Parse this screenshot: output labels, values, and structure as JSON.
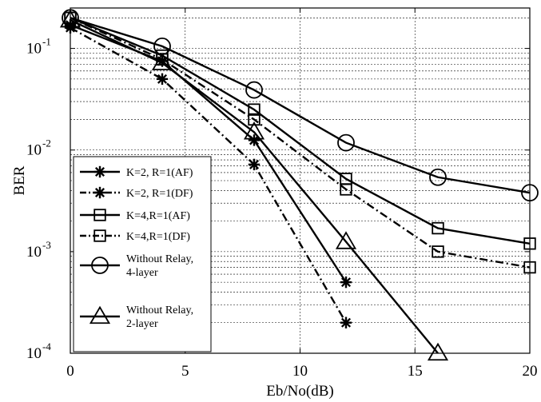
{
  "chart_data": {
    "type": "line",
    "xlabel": "Eb/No(dB)",
    "ylabel": "BER",
    "xlim": [
      0,
      20
    ],
    "ylim": [
      0.0001,
      0.25
    ],
    "yscale": "log",
    "grid": true,
    "legend_position": "bottom-left",
    "x_ticks": [
      {
        "value": 0,
        "label": "0"
      },
      {
        "value": 5,
        "label": "5"
      },
      {
        "value": 10,
        "label": "10"
      },
      {
        "value": 15,
        "label": "15"
      },
      {
        "value": 20,
        "label": "20"
      }
    ],
    "y_ticks": [
      {
        "value": 0.1,
        "base": "10",
        "exp": "-1"
      },
      {
        "value": 0.01,
        "base": "10",
        "exp": "-2"
      },
      {
        "value": 0.001,
        "base": "10",
        "exp": "-3"
      },
      {
        "value": 0.0001,
        "base": "10",
        "exp": "-4"
      }
    ],
    "series": [
      {
        "name": "K=2, R=1(AF)",
        "marker": "star",
        "dash": "solid",
        "x": [
          0,
          4,
          8,
          12
        ],
        "y": [
          0.17,
          0.075,
          0.0125,
          0.0005
        ]
      },
      {
        "name": "K=2, R=1(DF)",
        "marker": "star",
        "dash": "dashdot",
        "x": [
          0,
          4,
          8,
          12
        ],
        "y": [
          0.16,
          0.05,
          0.0072,
          0.0002
        ]
      },
      {
        "name": "K=4,R=1(AF)",
        "marker": "square",
        "dash": "solid",
        "x": [
          0,
          4,
          8,
          12,
          16,
          20
        ],
        "y": [
          0.2,
          0.085,
          0.025,
          0.0052,
          0.0017,
          0.0012
        ]
      },
      {
        "name": "K=4,R=1(DF)",
        "marker": "square",
        "dash": "dashdot",
        "x": [
          0,
          4,
          8,
          12,
          16,
          20
        ],
        "y": [
          0.2,
          0.078,
          0.02,
          0.0041,
          0.001,
          0.0007
        ]
      },
      {
        "name": "Without Relay, 4-layer",
        "marker": "circle",
        "dash": "solid",
        "x": [
          0,
          4,
          8,
          12,
          16,
          20
        ],
        "y": [
          0.2,
          0.105,
          0.039,
          0.0118,
          0.0054,
          0.0038
        ]
      },
      {
        "name": "Without Relay, 2-layer",
        "marker": "triangle",
        "dash": "solid",
        "x": [
          0,
          4,
          8,
          12,
          16
        ],
        "y": [
          0.19,
          0.072,
          0.015,
          0.00125,
          0.0001
        ]
      }
    ],
    "legend": [
      {
        "lines": [
          "K=2, R=1(AF)"
        ]
      },
      {
        "lines": [
          "K=2, R=1(DF)"
        ]
      },
      {
        "lines": [
          "K=4,R=1(AF)"
        ]
      },
      {
        "lines": [
          "K=4,R=1(DF)"
        ]
      },
      {
        "lines": [
          "Without Relay,",
          "4-layer"
        ]
      },
      {
        "lines": [
          "Without Relay,",
          "2-layer"
        ]
      }
    ]
  }
}
